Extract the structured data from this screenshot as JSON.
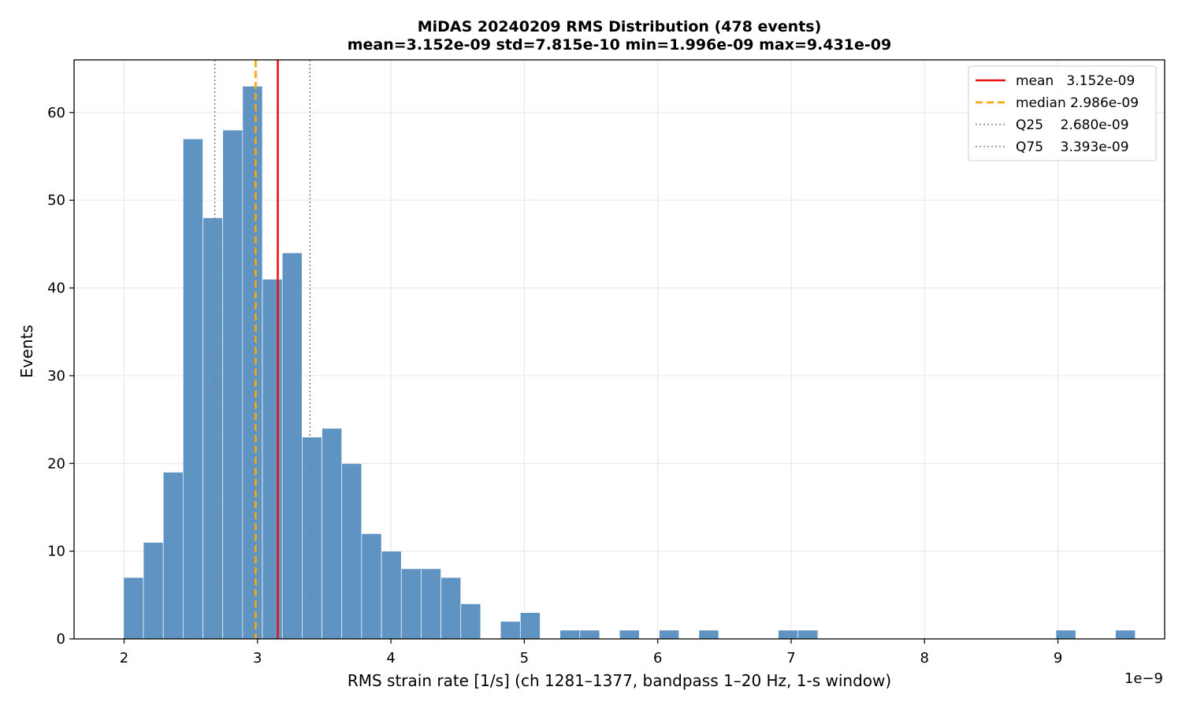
{
  "chart_data": {
    "type": "bar",
    "title": "MiDAS 20240209  RMS Distribution  (478 events)",
    "subtitle": "mean=3.152e-09  std=7.815e-10  min=1.996e-09  max=9.431e-09",
    "xlabel": "RMS strain rate [1/s]  (ch 1281–1377, bandpass 1–20 Hz, 1-s window)",
    "ylabel": "Events",
    "x_offset_label": "1e−9",
    "xlim": [
      1.625,
      9.8
    ],
    "ylim": [
      0,
      66
    ],
    "xticks": [
      2,
      3,
      4,
      5,
      6,
      7,
      8,
      9
    ],
    "yticks": [
      0,
      10,
      20,
      30,
      40,
      50,
      60
    ],
    "grid": true,
    "bin_start": 1.996,
    "bin_width": 0.1487,
    "counts": [
      7,
      11,
      19,
      57,
      48,
      58,
      63,
      41,
      44,
      23,
      24,
      20,
      12,
      10,
      8,
      8,
      7,
      4,
      0,
      2,
      3,
      0,
      1,
      1,
      0,
      1,
      0,
      1,
      0,
      1,
      0,
      0,
      0,
      1,
      1,
      0,
      0,
      0,
      0,
      0,
      0,
      0,
      0,
      0,
      0,
      0,
      0,
      1,
      0,
      0,
      1
    ],
    "bar_color": "#5f93c1",
    "vlines": [
      {
        "name": "mean",
        "value": 3.152,
        "label": "mean   3.152e-09",
        "color": "#ee1111",
        "style": "solid"
      },
      {
        "name": "median",
        "value": 2.986,
        "label": "median 2.986e-09",
        "color": "#ffa500",
        "style": "dashed"
      },
      {
        "name": "q25",
        "value": 2.68,
        "label": "Q25    2.680e-09",
        "color": "#808080",
        "style": "dotted"
      },
      {
        "name": "q75",
        "value": 3.393,
        "label": "Q75    3.393e-09",
        "color": "#808080",
        "style": "dotted"
      }
    ],
    "legend_position": "top-right"
  }
}
